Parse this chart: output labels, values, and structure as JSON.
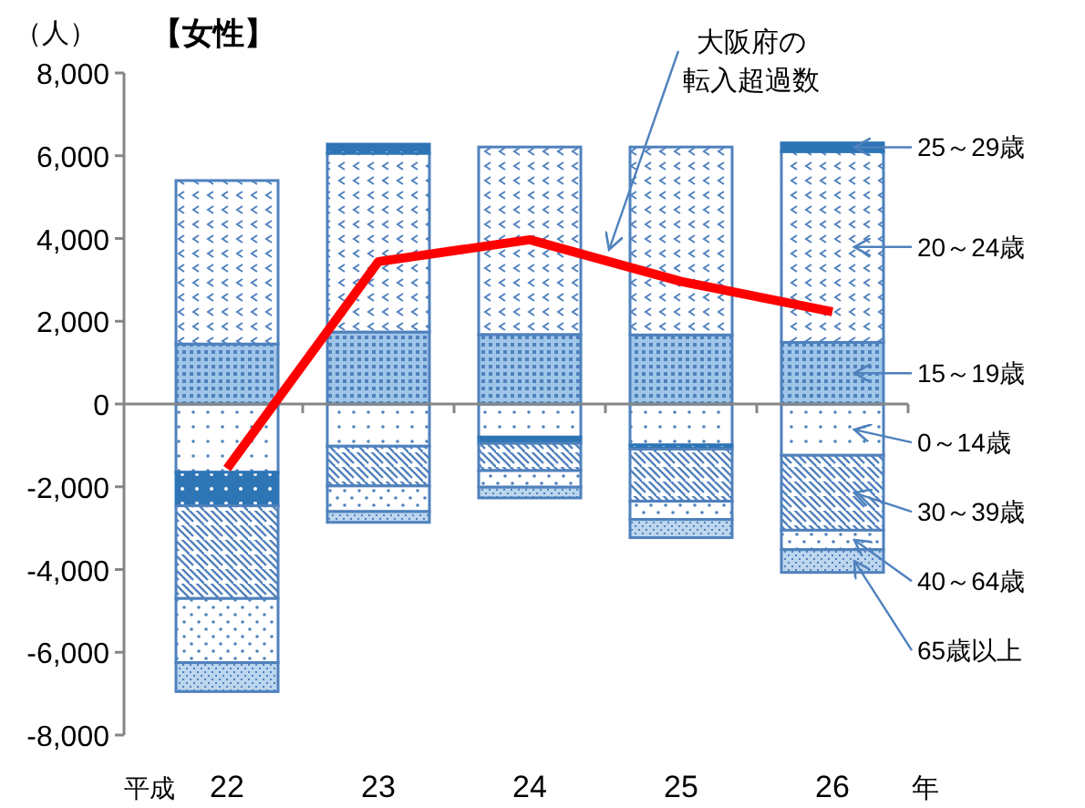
{
  "chart_data": {
    "type": "bar",
    "stacked": true,
    "title": "【女性】",
    "ylabel": "（人）",
    "categories": [
      "22",
      "23",
      "24",
      "25",
      "26"
    ],
    "ylim": [
      -8000,
      8000
    ],
    "yticks": [
      {
        "value": -8000,
        "label": "-8,000"
      },
      {
        "value": -6000,
        "label": "-6,000"
      },
      {
        "value": -4000,
        "label": "-4,000"
      },
      {
        "value": -2000,
        "label": "-2,000"
      },
      0,
      {
        "value": 2000,
        "label": "2,000"
      },
      {
        "value": 4000,
        "label": "4,000"
      },
      {
        "value": 6000,
        "label": "6,000"
      },
      {
        "value": 8000,
        "label": "8,000"
      }
    ],
    "annotations": [
      "平成",
      "年"
    ],
    "series": [
      {
        "name": "0～14歳",
        "color": "#4f81bd",
        "values": [
          -1650,
          -1020,
          -800,
          -990,
          -1240
        ]
      },
      {
        "name": "15～19歳",
        "color": "#4f81bd",
        "values": [
          1450,
          1740,
          1680,
          1670,
          1490
        ]
      },
      {
        "name": "20～24歳",
        "color": "#4f81bd",
        "values": [
          3950,
          4320,
          4530,
          4540,
          4610
        ]
      },
      {
        "name": "25～29歳",
        "color": "#2e75b6",
        "values": [
          -810,
          220,
          -150,
          -100,
          210
        ]
      },
      {
        "name": "30～39歳",
        "color": "#4f81bd",
        "values": [
          -2240,
          -960,
          -660,
          -1260,
          -1810
        ]
      },
      {
        "name": "40～64歳",
        "color": "#4f81bd",
        "values": [
          -1550,
          -620,
          -400,
          -440,
          -470
        ]
      },
      {
        "name": "65歳以上",
        "color": "#4f81bd",
        "values": [
          -700,
          -260,
          -260,
          -440,
          -550
        ]
      },
      {
        "name": "大阪府の転入超過数",
        "type": "line",
        "color": "#ff0000",
        "values": [
          -1560,
          3440,
          3970,
          2960,
          2230
        ]
      }
    ]
  }
}
